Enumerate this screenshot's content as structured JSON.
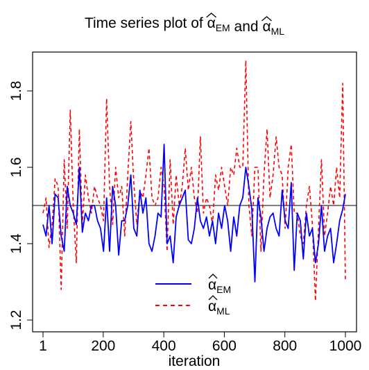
{
  "chart_data": {
    "type": "line",
    "title": {
      "prefix": "Time series plot of ",
      "symbol": "α",
      "hat": "^",
      "sub_em": "EM",
      "middle": " and ",
      "sub_ml": "ML"
    },
    "xlabel": "iteration",
    "ylabel": "",
    "xlim": [
      1,
      1000
    ],
    "ylim": [
      1.2,
      1.9
    ],
    "x_ticks": [
      1,
      200,
      400,
      600,
      800,
      1000
    ],
    "x_tick_labels": [
      "1",
      "200",
      "400",
      "600",
      "800",
      "1000"
    ],
    "y_ticks": [
      1.2,
      1.4,
      1.6,
      1.8
    ],
    "y_tick_labels": [
      "1.2",
      "1.4",
      "1.6",
      "1.8"
    ],
    "reference_line": 1.5,
    "grid": false,
    "legend_position": "bottom-center",
    "x": [
      1,
      11,
      21,
      31,
      41,
      51,
      61,
      71,
      81,
      91,
      101,
      111,
      121,
      131,
      141,
      151,
      161,
      171,
      181,
      191,
      201,
      211,
      221,
      231,
      241,
      251,
      261,
      271,
      281,
      291,
      301,
      311,
      321,
      331,
      341,
      351,
      361,
      371,
      381,
      391,
      401,
      411,
      421,
      431,
      441,
      451,
      461,
      471,
      481,
      491,
      501,
      511,
      521,
      531,
      541,
      551,
      561,
      571,
      581,
      591,
      601,
      611,
      621,
      631,
      641,
      651,
      661,
      671,
      681,
      691,
      701,
      711,
      721,
      731,
      741,
      751,
      761,
      771,
      781,
      791,
      801,
      811,
      821,
      831,
      841,
      851,
      861,
      871,
      881,
      891,
      901,
      911,
      921,
      931,
      941,
      951,
      961,
      971,
      981,
      991,
      1000
    ],
    "series": [
      {
        "name": "EM",
        "color": "#0000ff",
        "dash": "solid",
        "values": [
          1.45,
          1.42,
          1.5,
          1.4,
          1.53,
          1.52,
          1.42,
          1.38,
          1.55,
          1.5,
          1.48,
          1.45,
          1.6,
          1.43,
          1.48,
          1.46,
          1.5,
          1.5,
          1.46,
          1.44,
          1.38,
          1.52,
          1.38,
          1.55,
          1.5,
          1.37,
          1.46,
          1.46,
          1.5,
          1.58,
          1.44,
          1.42,
          1.54,
          1.48,
          1.52,
          1.4,
          1.38,
          1.42,
          1.48,
          1.47,
          1.66,
          1.4,
          1.42,
          1.35,
          1.47,
          1.5,
          1.52,
          1.54,
          1.41,
          1.4,
          1.44,
          1.52,
          1.46,
          1.44,
          1.47,
          1.42,
          1.46,
          1.4,
          1.48,
          1.44,
          1.5,
          1.46,
          1.38,
          1.47,
          1.42,
          1.5,
          1.52,
          1.6,
          1.55,
          1.49,
          1.3,
          1.52,
          1.47,
          1.38,
          1.44,
          1.47,
          1.48,
          1.44,
          1.42,
          1.54,
          1.46,
          1.44,
          1.56,
          1.33,
          1.48,
          1.46,
          1.36,
          1.48,
          1.42,
          1.44,
          1.35,
          1.4,
          1.5,
          1.38,
          1.42,
          1.44,
          1.35,
          1.4,
          1.46,
          1.49,
          1.53
        ]
      },
      {
        "name": "ML",
        "color": "#ff0000",
        "dash": "dashed",
        "values": [
          1.48,
          1.52,
          1.39,
          1.45,
          1.57,
          1.55,
          1.28,
          1.62,
          1.44,
          1.75,
          1.5,
          1.35,
          1.7,
          1.45,
          1.58,
          1.52,
          1.48,
          1.55,
          1.52,
          1.5,
          1.46,
          1.78,
          1.55,
          1.45,
          1.6,
          1.52,
          1.55,
          1.42,
          1.58,
          1.72,
          1.56,
          1.45,
          1.54,
          1.52,
          1.58,
          1.65,
          1.52,
          1.5,
          1.52,
          1.6,
          1.55,
          1.38,
          1.62,
          1.45,
          1.58,
          1.5,
          1.55,
          1.65,
          1.54,
          1.6,
          1.52,
          1.48,
          1.68,
          1.48,
          1.52,
          1.5,
          1.45,
          1.58,
          1.54,
          1.6,
          1.55,
          1.5,
          1.6,
          1.58,
          1.65,
          1.6,
          1.6,
          1.88,
          1.5,
          1.42,
          1.6,
          1.6,
          1.38,
          1.58,
          1.7,
          1.52,
          1.58,
          1.68,
          1.6,
          1.58,
          1.44,
          1.6,
          1.66,
          1.48,
          1.48,
          1.42,
          1.4,
          1.5,
          1.55,
          1.45,
          1.25,
          1.44,
          1.62,
          1.42,
          1.48,
          1.55,
          1.5,
          1.6,
          1.52,
          1.82,
          1.3
        ]
      }
    ]
  }
}
